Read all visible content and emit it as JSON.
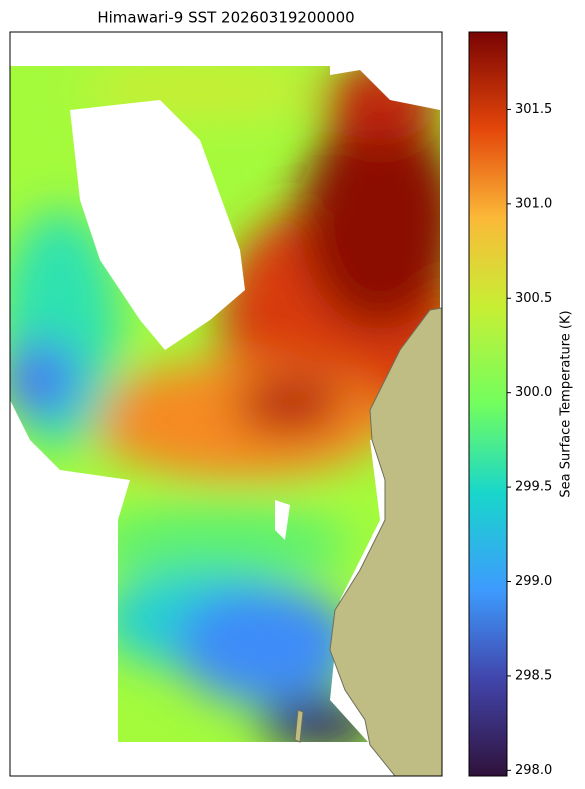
{
  "chart_data": {
    "type": "heatmap",
    "title": "Himawari-9 SST 20260319200000",
    "colorbar_label": "Sea Surface Temperature (K)",
    "clim": [
      297.97,
      301.91
    ],
    "cticks": [
      {
        "value": 298,
        "label": "298.0"
      },
      {
        "value": 298.5,
        "label": "298.5"
      },
      {
        "value": 299,
        "label": "299.0"
      },
      {
        "value": 299.5,
        "label": "299.5"
      },
      {
        "value": 300,
        "label": "300.0"
      },
      {
        "value": 300.5,
        "label": "300.5"
      },
      {
        "value": 301,
        "label": "301.0"
      },
      {
        "value": 301.5,
        "label": "301.5"
      }
    ]
  }
}
